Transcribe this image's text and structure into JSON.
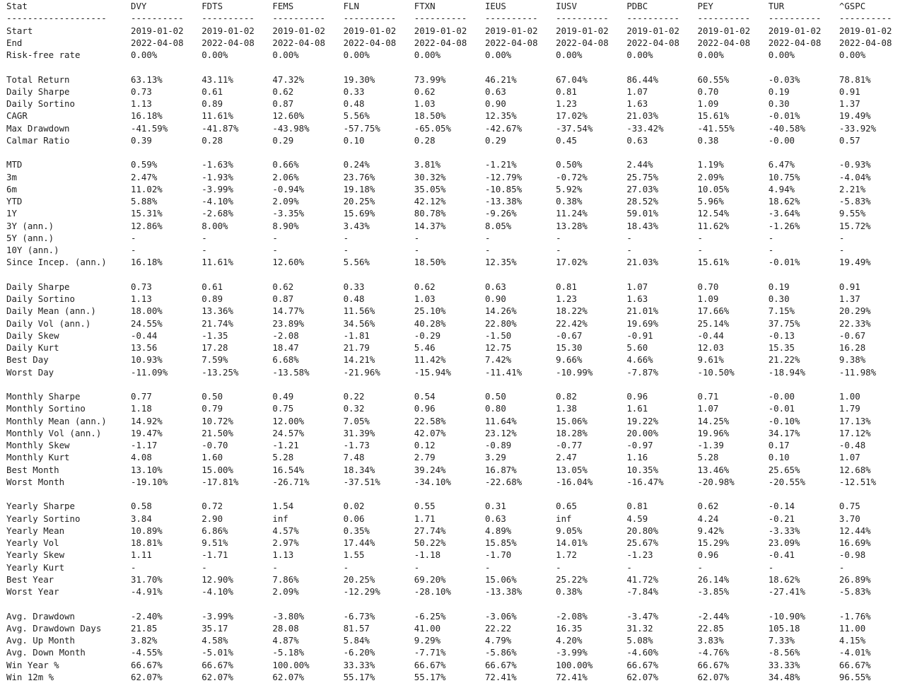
{
  "columns": [
    "Stat",
    "DVY",
    "FDTS",
    "FEMS",
    "FLN",
    "FTXN",
    "IEUS",
    "IUSV",
    "PDBC",
    "PEY",
    "TUR",
    "^GSPC"
  ],
  "separator": [
    "-------------------",
    "----------",
    "----------",
    "----------",
    "----------",
    "----------",
    "----------",
    "----------",
    "----------",
    "----------",
    "----------",
    "----------"
  ],
  "groups": [
    [
      [
        "Start",
        "2019-01-02",
        "2019-01-02",
        "2019-01-02",
        "2019-01-02",
        "2019-01-02",
        "2019-01-02",
        "2019-01-02",
        "2019-01-02",
        "2019-01-02",
        "2019-01-02",
        "2019-01-02"
      ],
      [
        "End",
        "2022-04-08",
        "2022-04-08",
        "2022-04-08",
        "2022-04-08",
        "2022-04-08",
        "2022-04-08",
        "2022-04-08",
        "2022-04-08",
        "2022-04-08",
        "2022-04-08",
        "2022-04-08"
      ],
      [
        "Risk-free rate",
        "0.00%",
        "0.00%",
        "0.00%",
        "0.00%",
        "0.00%",
        "0.00%",
        "0.00%",
        "0.00%",
        "0.00%",
        "0.00%",
        "0.00%"
      ]
    ],
    [
      [
        "Total Return",
        "63.13%",
        "43.11%",
        "47.32%",
        "19.30%",
        "73.99%",
        "46.21%",
        "67.04%",
        "86.44%",
        "60.55%",
        "-0.03%",
        "78.81%"
      ],
      [
        "Daily Sharpe",
        "0.73",
        "0.61",
        "0.62",
        "0.33",
        "0.62",
        "0.63",
        "0.81",
        "1.07",
        "0.70",
        "0.19",
        "0.91"
      ],
      [
        "Daily Sortino",
        "1.13",
        "0.89",
        "0.87",
        "0.48",
        "1.03",
        "0.90",
        "1.23",
        "1.63",
        "1.09",
        "0.30",
        "1.37"
      ],
      [
        "CAGR",
        "16.18%",
        "11.61%",
        "12.60%",
        "5.56%",
        "18.50%",
        "12.35%",
        "17.02%",
        "21.03%",
        "15.61%",
        "-0.01%",
        "19.49%"
      ],
      [
        "Max Drawdown",
        "-41.59%",
        "-41.87%",
        "-43.98%",
        "-57.75%",
        "-65.05%",
        "-42.67%",
        "-37.54%",
        "-33.42%",
        "-41.55%",
        "-40.58%",
        "-33.92%"
      ],
      [
        "Calmar Ratio",
        "0.39",
        "0.28",
        "0.29",
        "0.10",
        "0.28",
        "0.29",
        "0.45",
        "0.63",
        "0.38",
        "-0.00",
        "0.57"
      ]
    ],
    [
      [
        "MTD",
        "0.59%",
        "-1.63%",
        "0.66%",
        "0.24%",
        "3.81%",
        "-1.21%",
        "0.50%",
        "2.44%",
        "1.19%",
        "6.47%",
        "-0.93%"
      ],
      [
        "3m",
        "2.47%",
        "-1.93%",
        "2.06%",
        "23.76%",
        "30.32%",
        "-12.79%",
        "-0.72%",
        "25.75%",
        "2.09%",
        "10.75%",
        "-4.04%"
      ],
      [
        "6m",
        "11.02%",
        "-3.99%",
        "-0.94%",
        "19.18%",
        "35.05%",
        "-10.85%",
        "5.92%",
        "27.03%",
        "10.05%",
        "4.94%",
        "2.21%"
      ],
      [
        "YTD",
        "5.88%",
        "-4.10%",
        "2.09%",
        "20.25%",
        "42.12%",
        "-13.38%",
        "0.38%",
        "28.52%",
        "5.96%",
        "18.62%",
        "-5.83%"
      ],
      [
        "1Y",
        "15.31%",
        "-2.68%",
        "-3.35%",
        "15.69%",
        "80.78%",
        "-9.26%",
        "11.24%",
        "59.01%",
        "12.54%",
        "-3.64%",
        "9.55%"
      ],
      [
        "3Y (ann.)",
        "12.86%",
        "8.00%",
        "8.90%",
        "3.43%",
        "14.37%",
        "8.05%",
        "13.28%",
        "18.43%",
        "11.62%",
        "-1.26%",
        "15.72%"
      ],
      [
        "5Y (ann.)",
        "-",
        "-",
        "-",
        "-",
        "-",
        "-",
        "-",
        "-",
        "-",
        "-",
        "-"
      ],
      [
        "10Y (ann.)",
        "-",
        "-",
        "-",
        "-",
        "-",
        "-",
        "-",
        "-",
        "-",
        "-",
        "-"
      ],
      [
        "Since Incep. (ann.)",
        "16.18%",
        "11.61%",
        "12.60%",
        "5.56%",
        "18.50%",
        "12.35%",
        "17.02%",
        "21.03%",
        "15.61%",
        "-0.01%",
        "19.49%"
      ]
    ],
    [
      [
        "Daily Sharpe",
        "0.73",
        "0.61",
        "0.62",
        "0.33",
        "0.62",
        "0.63",
        "0.81",
        "1.07",
        "0.70",
        "0.19",
        "0.91"
      ],
      [
        "Daily Sortino",
        "1.13",
        "0.89",
        "0.87",
        "0.48",
        "1.03",
        "0.90",
        "1.23",
        "1.63",
        "1.09",
        "0.30",
        "1.37"
      ],
      [
        "Daily Mean (ann.)",
        "18.00%",
        "13.36%",
        "14.77%",
        "11.56%",
        "25.10%",
        "14.26%",
        "18.22%",
        "21.01%",
        "17.66%",
        "7.15%",
        "20.29%"
      ],
      [
        "Daily Vol (ann.)",
        "24.55%",
        "21.74%",
        "23.89%",
        "34.56%",
        "40.28%",
        "22.80%",
        "22.42%",
        "19.69%",
        "25.14%",
        "37.75%",
        "22.33%"
      ],
      [
        "Daily Skew",
        "-0.44",
        "-1.35",
        "-2.08",
        "-1.81",
        "-0.29",
        "-1.50",
        "-0.67",
        "-0.91",
        "-0.44",
        "-0.13",
        "-0.67"
      ],
      [
        "Daily Kurt",
        "13.56",
        "17.28",
        "18.47",
        "21.79",
        "5.46",
        "12.75",
        "15.30",
        "5.60",
        "12.03",
        "15.35",
        "16.28"
      ],
      [
        "Best Day",
        "10.93%",
        "7.59%",
        "6.68%",
        "14.21%",
        "11.42%",
        "7.42%",
        "9.66%",
        "4.66%",
        "9.61%",
        "21.22%",
        "9.38%"
      ],
      [
        "Worst Day",
        "-11.09%",
        "-13.25%",
        "-13.58%",
        "-21.96%",
        "-15.94%",
        "-11.41%",
        "-10.99%",
        "-7.87%",
        "-10.50%",
        "-18.94%",
        "-11.98%"
      ]
    ],
    [
      [
        "Monthly Sharpe",
        "0.77",
        "0.50",
        "0.49",
        "0.22",
        "0.54",
        "0.50",
        "0.82",
        "0.96",
        "0.71",
        "-0.00",
        "1.00"
      ],
      [
        "Monthly Sortino",
        "1.18",
        "0.79",
        "0.75",
        "0.32",
        "0.96",
        "0.80",
        "1.38",
        "1.61",
        "1.07",
        "-0.01",
        "1.79"
      ],
      [
        "Monthly Mean (ann.)",
        "14.92%",
        "10.72%",
        "12.00%",
        "7.05%",
        "22.58%",
        "11.64%",
        "15.06%",
        "19.22%",
        "14.25%",
        "-0.10%",
        "17.13%"
      ],
      [
        "Monthly Vol (ann.)",
        "19.47%",
        "21.50%",
        "24.57%",
        "31.39%",
        "42.07%",
        "23.12%",
        "18.28%",
        "20.00%",
        "19.96%",
        "34.17%",
        "17.12%"
      ],
      [
        "Monthly Skew",
        "-1.17",
        "-0.70",
        "-1.21",
        "-1.73",
        "0.12",
        "-0.89",
        "-0.77",
        "-0.97",
        "-1.39",
        "0.17",
        "-0.48"
      ],
      [
        "Monthly Kurt",
        "4.08",
        "1.60",
        "5.28",
        "7.48",
        "2.79",
        "3.29",
        "2.47",
        "1.16",
        "5.28",
        "0.10",
        "1.07"
      ],
      [
        "Best Month",
        "13.10%",
        "15.00%",
        "16.54%",
        "18.34%",
        "39.24%",
        "16.87%",
        "13.05%",
        "10.35%",
        "13.46%",
        "25.65%",
        "12.68%"
      ],
      [
        "Worst Month",
        "-19.10%",
        "-17.81%",
        "-26.71%",
        "-37.51%",
        "-34.10%",
        "-22.68%",
        "-16.04%",
        "-16.47%",
        "-20.98%",
        "-20.55%",
        "-12.51%"
      ]
    ],
    [
      [
        "Yearly Sharpe",
        "0.58",
        "0.72",
        "1.54",
        "0.02",
        "0.55",
        "0.31",
        "0.65",
        "0.81",
        "0.62",
        "-0.14",
        "0.75"
      ],
      [
        "Yearly Sortino",
        "3.84",
        "2.90",
        "inf",
        "0.06",
        "1.71",
        "0.63",
        "inf",
        "4.59",
        "4.24",
        "-0.21",
        "3.70"
      ],
      [
        "Yearly Mean",
        "10.89%",
        "6.86%",
        "4.57%",
        "0.35%",
        "27.74%",
        "4.89%",
        "9.05%",
        "20.80%",
        "9.42%",
        "-3.33%",
        "12.44%"
      ],
      [
        "Yearly Vol",
        "18.81%",
        "9.51%",
        "2.97%",
        "17.44%",
        "50.22%",
        "15.85%",
        "14.01%",
        "25.67%",
        "15.29%",
        "23.09%",
        "16.69%"
      ],
      [
        "Yearly Skew",
        "1.11",
        "-1.71",
        "1.13",
        "1.55",
        "-1.18",
        "-1.70",
        "1.72",
        "-1.23",
        "0.96",
        "-0.41",
        "-0.98"
      ],
      [
        "Yearly Kurt",
        "-",
        "-",
        "-",
        "-",
        "-",
        "-",
        "-",
        "-",
        "-",
        "-",
        "-"
      ],
      [
        "Best Year",
        "31.70%",
        "12.90%",
        "7.86%",
        "20.25%",
        "69.20%",
        "15.06%",
        "25.22%",
        "41.72%",
        "26.14%",
        "18.62%",
        "26.89%"
      ],
      [
        "Worst Year",
        "-4.91%",
        "-4.10%",
        "2.09%",
        "-12.29%",
        "-28.10%",
        "-13.38%",
        "0.38%",
        "-7.84%",
        "-3.85%",
        "-27.41%",
        "-5.83%"
      ]
    ],
    [
      [
        "Avg. Drawdown",
        "-2.40%",
        "-3.99%",
        "-3.80%",
        "-6.73%",
        "-6.25%",
        "-3.06%",
        "-2.08%",
        "-3.47%",
        "-2.44%",
        "-10.90%",
        "-1.76%"
      ],
      [
        "Avg. Drawdown Days",
        "21.85",
        "35.17",
        "28.08",
        "81.57",
        "41.00",
        "22.22",
        "16.35",
        "31.32",
        "22.85",
        "105.18",
        "11.00"
      ],
      [
        "Avg. Up Month",
        "3.82%",
        "4.58%",
        "4.87%",
        "5.84%",
        "9.29%",
        "4.79%",
        "4.20%",
        "5.08%",
        "3.83%",
        "7.33%",
        "4.15%"
      ],
      [
        "Avg. Down Month",
        "-4.55%",
        "-5.01%",
        "-5.18%",
        "-6.20%",
        "-7.71%",
        "-5.86%",
        "-3.99%",
        "-4.60%",
        "-4.76%",
        "-8.56%",
        "-4.01%"
      ],
      [
        "Win Year %",
        "66.67%",
        "66.67%",
        "100.00%",
        "33.33%",
        "66.67%",
        "66.67%",
        "100.00%",
        "66.67%",
        "66.67%",
        "33.33%",
        "66.67%"
      ],
      [
        "Win 12m %",
        "62.07%",
        "62.07%",
        "62.07%",
        "55.17%",
        "55.17%",
        "72.41%",
        "72.41%",
        "62.07%",
        "62.07%",
        "34.48%",
        "96.55%"
      ]
    ]
  ]
}
